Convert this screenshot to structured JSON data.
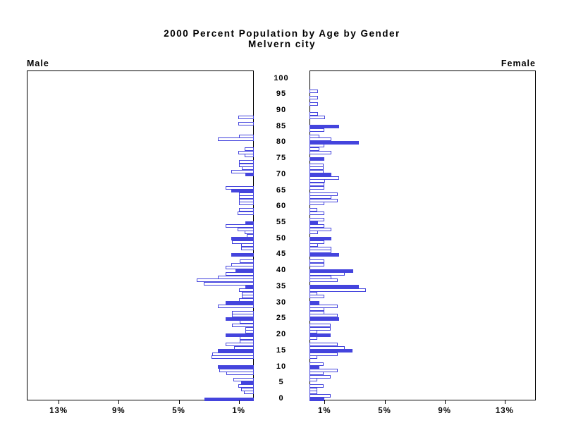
{
  "title_line1": "2000 Percent Population by Age by Gender",
  "title_line2": "Melvern city",
  "left_panel_label": "Male",
  "right_panel_label": "Female",
  "colors": {
    "bar_blue": "#4444dd",
    "axis_black": "#000000",
    "background": "#ffffff"
  },
  "chart_data": {
    "type": "bar",
    "subtype": "population-pyramid",
    "title": "2000 Percent Population by Age by Gender",
    "subtitle": "Melvern city",
    "xlabel_unit": "%",
    "x_ticks_percent": [
      1,
      5,
      9,
      13
    ],
    "x_max_percent": 15.1,
    "age_axis_ticks": [
      0,
      5,
      10,
      15,
      20,
      25,
      30,
      35,
      40,
      45,
      50,
      55,
      60,
      65,
      70,
      75,
      80,
      85,
      90,
      95,
      100
    ],
    "age_tick_label_suffix": "",
    "fill_rule": "bars at ages divisible by 5 are solid blue; all other bars are white with blue outline",
    "ages": "0-100 single years, index = age",
    "series": [
      {
        "name": "Male",
        "direction": "left",
        "values_percent": [
          3.3,
          0,
          0.65,
          0.85,
          1.05,
          0.85,
          1.35,
          0,
          1.85,
          2.3,
          2.4,
          0,
          0,
          2.8,
          2.75,
          2.4,
          1.3,
          1.9,
          0.95,
          0.95,
          1.9,
          0.55,
          0.55,
          1.45,
          0.95,
          1.9,
          1.45,
          1.45,
          0,
          2.4,
          1.9,
          1.0,
          0.8,
          0.8,
          1.0,
          0.55,
          3.35,
          3.8,
          2.4,
          1.9,
          1.2,
          1.9,
          1.5,
          0.95,
          0,
          1.5,
          0,
          0.85,
          0.85,
          1.45,
          1.5,
          0.45,
          0.6,
          1.1,
          1.9,
          0.55,
          0,
          0,
          1.1,
          1.0,
          0,
          1.0,
          1.0,
          1.0,
          1.0,
          1.5,
          1.9,
          0,
          0,
          0,
          0.55,
          1.5,
          0.8,
          1.0,
          1.0,
          0,
          0.6,
          1.05,
          0.6,
          0,
          0,
          2.4,
          1.0,
          0,
          0,
          0,
          1.05,
          0,
          1.05,
          0,
          0,
          0,
          0,
          0,
          0,
          0,
          0,
          0,
          0,
          0,
          0
        ]
      },
      {
        "name": "Female",
        "direction": "right",
        "values_percent": [
          1.0,
          1.4,
          0.5,
          0.5,
          0.95,
          0,
          0.5,
          1.4,
          0.95,
          1.9,
          0.65,
          0.95,
          0,
          0.5,
          1.9,
          2.85,
          2.35,
          1.9,
          0,
          0.5,
          1.4,
          0.5,
          1.4,
          1.4,
          0,
          1.95,
          1.9,
          1.0,
          1.0,
          1.9,
          0.65,
          0,
          1.0,
          0.5,
          3.75,
          3.3,
          0,
          1.9,
          1.45,
          2.35,
          2.9,
          0,
          1.0,
          1.0,
          0,
          1.95,
          1.45,
          1.45,
          0.55,
          1.0,
          1.45,
          0,
          0.55,
          1.45,
          1.0,
          0.55,
          1.0,
          0,
          1.0,
          0.5,
          0,
          1.0,
          1.9,
          1.45,
          1.9,
          0,
          1.0,
          1.0,
          1.05,
          1.95,
          1.45,
          0.95,
          0.95,
          0.95,
          0,
          1.0,
          0,
          1.45,
          0.65,
          1.0,
          3.3,
          1.45,
          0.65,
          0,
          1.0,
          1.95,
          0,
          0,
          1.05,
          0.55,
          0,
          0,
          0.55,
          0,
          0.55,
          0,
          0.55,
          0,
          0,
          0,
          0
        ]
      }
    ],
    "legend": "none",
    "grid": "off"
  }
}
